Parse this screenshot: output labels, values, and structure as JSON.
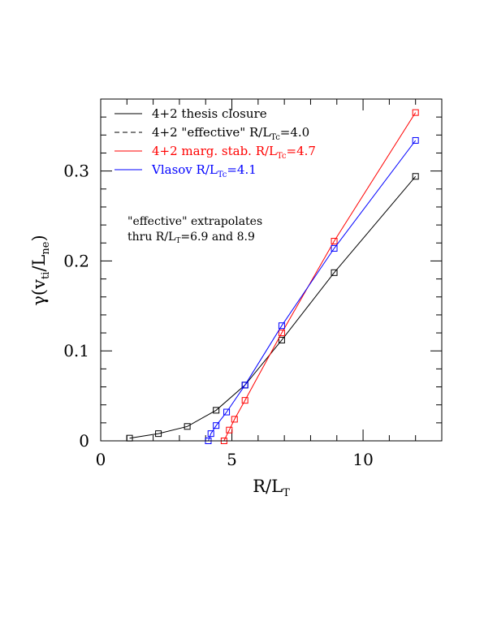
{
  "chart_data": {
    "type": "line",
    "xlabel": {
      "base": "R/L",
      "sub": "T"
    },
    "ylabel": {
      "pre": "γ(v",
      "sub1": "ti",
      "mid": "/L",
      "sub2": "ne",
      "post": ")"
    },
    "xlim": [
      0,
      13
    ],
    "ylim": [
      0,
      0.38
    ],
    "xticks": [
      0,
      5,
      10
    ],
    "xtick_labels": [
      "0",
      "5",
      "10"
    ],
    "yticks": [
      0,
      0.1,
      0.2,
      0.3
    ],
    "ytick_labels": [
      "0",
      "0.1",
      "0.2",
      "0.3"
    ],
    "grid": false,
    "legend_position": "top-left",
    "annotation": {
      "line1": "\"effective\" extrapolates",
      "line2_pre": "thru R/L",
      "line2_sub": "T",
      "line2_post": "=6.9 and 8.9"
    },
    "series": [
      {
        "name": "4+2 thesis closure",
        "legend": {
          "pre": "4+2 thesis closure",
          "sub": "",
          "post": ""
        },
        "color": "#000000",
        "dash": "solid",
        "x": [
          1.1,
          2.2,
          3.3,
          4.4,
          5.5,
          6.9,
          8.9,
          12.0
        ],
        "y": [
          0.003,
          0.008,
          0.016,
          0.034,
          0.062,
          0.112,
          0.187,
          0.294
        ]
      },
      {
        "name": "4+2 \"effective\" R/LTc=4.0",
        "legend": {
          "pre": "4+2 \"effective\" R/L",
          "sub": "Tc",
          "post": "=4.0"
        },
        "color": "#000000",
        "dash": "dashed",
        "x": [],
        "y": []
      },
      {
        "name": "4+2 marg. stab. R/LTc=4.7",
        "legend": {
          "pre": "4+2 marg. stab. R/L",
          "sub": "Tc",
          "post": "=4.7"
        },
        "color": "#ff0000",
        "dash": "solid",
        "x": [
          4.7,
          4.9,
          5.1,
          5.5,
          6.9,
          8.9,
          12.0
        ],
        "y": [
          0.0,
          0.012,
          0.024,
          0.045,
          0.12,
          0.222,
          0.365
        ]
      },
      {
        "name": "Vlasov R/LTc=4.1",
        "legend": {
          "pre": "Vlasov R/L",
          "sub": "Tc",
          "post": "=4.1"
        },
        "color": "#0000ff",
        "dash": "solid",
        "x": [
          4.1,
          4.2,
          4.4,
          4.8,
          5.5,
          6.9,
          8.9,
          12.0
        ],
        "y": [
          0.0,
          0.008,
          0.017,
          0.032,
          0.062,
          0.128,
          0.214,
          0.334
        ]
      }
    ]
  }
}
